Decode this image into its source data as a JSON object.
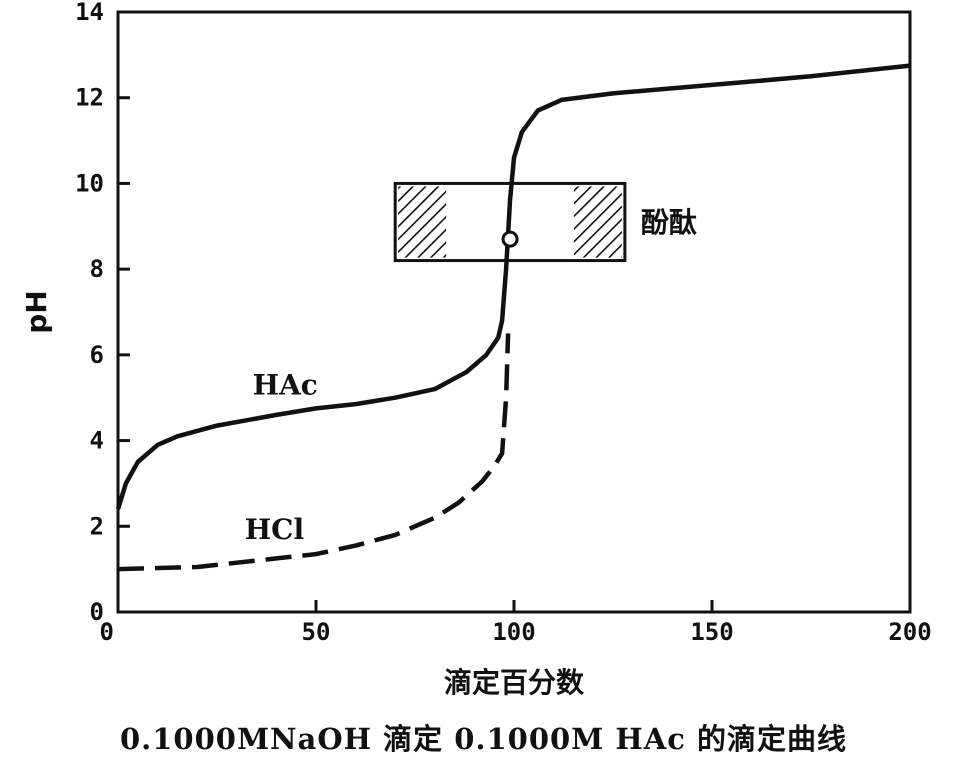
{
  "chart_data": {
    "type": "line",
    "title": "",
    "xlabel": "滴定百分数",
    "ylabel": "pH",
    "xlim": [
      0,
      200
    ],
    "ylim": [
      0,
      14
    ],
    "x_ticks": [
      0,
      50,
      100,
      150,
      200
    ],
    "y_ticks": [
      0,
      2,
      4,
      6,
      8,
      10,
      12,
      14
    ],
    "grid": false,
    "series": [
      {
        "name": "HAc",
        "style": "solid",
        "color": "#111111",
        "points": [
          [
            0,
            2.4
          ],
          [
            2,
            3.0
          ],
          [
            5,
            3.5
          ],
          [
            10,
            3.9
          ],
          [
            15,
            4.1
          ],
          [
            25,
            4.35
          ],
          [
            40,
            4.6
          ],
          [
            50,
            4.75
          ],
          [
            60,
            4.85
          ],
          [
            70,
            5.0
          ],
          [
            80,
            5.2
          ],
          [
            88,
            5.6
          ],
          [
            93,
            6.0
          ],
          [
            96,
            6.4
          ],
          [
            97,
            6.8
          ],
          [
            98,
            8.0
          ],
          [
            99,
            9.6
          ],
          [
            100,
            10.6
          ],
          [
            102,
            11.2
          ],
          [
            106,
            11.7
          ],
          [
            112,
            11.95
          ],
          [
            125,
            12.1
          ],
          [
            150,
            12.3
          ],
          [
            175,
            12.5
          ],
          [
            200,
            12.75
          ]
        ]
      },
      {
        "name": "HCl",
        "style": "dashed",
        "color": "#111111",
        "points": [
          [
            0,
            1.0
          ],
          [
            20,
            1.05
          ],
          [
            40,
            1.25
          ],
          [
            50,
            1.35
          ],
          [
            60,
            1.55
          ],
          [
            70,
            1.8
          ],
          [
            80,
            2.2
          ],
          [
            86,
            2.55
          ],
          [
            92,
            3.05
          ],
          [
            95,
            3.4
          ],
          [
            97,
            3.7
          ],
          [
            98,
            5.0
          ],
          [
            98.5,
            6.5
          ]
        ]
      }
    ],
    "annotations": {
      "indicator": {
        "label": "酚酞",
        "x_range": [
          70,
          128
        ],
        "ph_range": [
          8.2,
          10.0
        ]
      },
      "equivalence_point": [
        99,
        8.7
      ]
    },
    "caption": "0.1000MNaOH 滴定 0.1000M HAc 的滴定曲线"
  }
}
